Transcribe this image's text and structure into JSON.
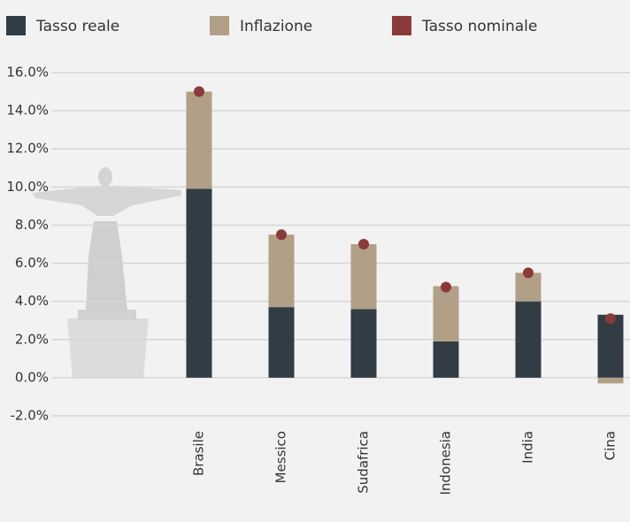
{
  "chart_data": {
    "type": "bar",
    "stacked": true,
    "categories": [
      "Brasile",
      "Messico",
      "Sudafrica",
      "Indonesia",
      "India",
      "Cina"
    ],
    "series": [
      {
        "name": "Tasso reale",
        "type": "bar",
        "color": "#323c44",
        "values": [
          9.9,
          3.7,
          3.6,
          1.9,
          4.0,
          3.3
        ]
      },
      {
        "name": "Inflazione",
        "type": "bar",
        "color": "#b29f88",
        "values": [
          5.1,
          3.8,
          3.4,
          2.9,
          1.5,
          -0.3
        ]
      },
      {
        "name": "Tasso nominale",
        "type": "scatter",
        "color": "#8b3a3a",
        "values": [
          15.0,
          7.5,
          7.0,
          4.75,
          5.5,
          3.1
        ]
      }
    ],
    "ylim": [
      -2,
      16
    ],
    "yticks": [
      {
        "value": -2,
        "label": "-2.0%"
      },
      {
        "value": 0,
        "label": "0.0%"
      },
      {
        "value": 2,
        "label": "2.0%"
      },
      {
        "value": 4,
        "label": "4.0%"
      },
      {
        "value": 6,
        "label": "6.0%"
      },
      {
        "value": 8,
        "label": "8.0%"
      },
      {
        "value": 10,
        "label": "10.0%"
      },
      {
        "value": 12,
        "label": "12.0%"
      },
      {
        "value": 14,
        "label": "14.0%"
      },
      {
        "value": 16,
        "label": "16.0%"
      }
    ],
    "grid": true,
    "legend": "top"
  }
}
